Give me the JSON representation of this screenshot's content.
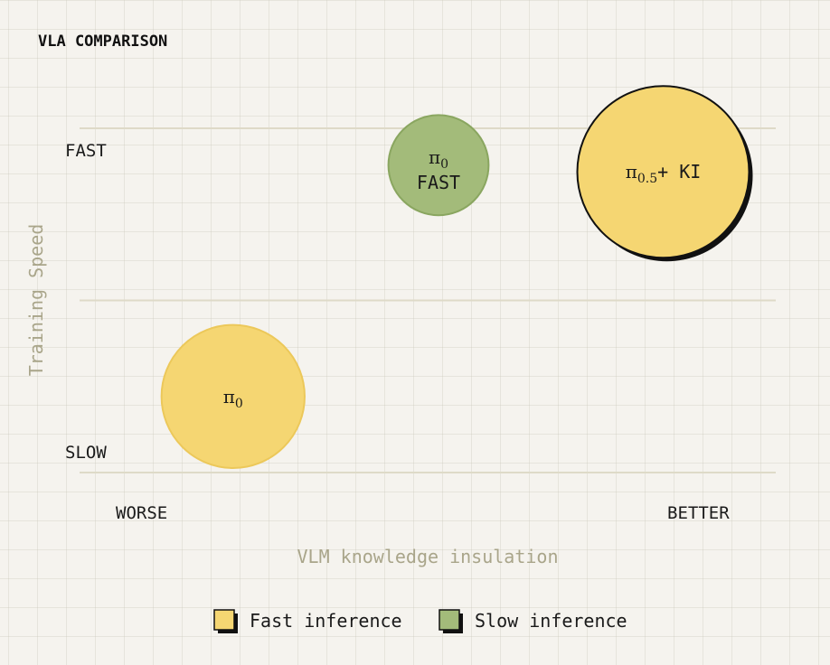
{
  "chart_data": {
    "type": "scatter",
    "title": "VLA COMPARISON",
    "xlabel": "VLM knowledge insulation",
    "ylabel": "Training Speed",
    "x_ticks": [
      "WORSE",
      "BETTER"
    ],
    "y_ticks": [
      "FAST",
      "SLOW"
    ],
    "xlim": [
      0,
      1
    ],
    "ylim": [
      0,
      1
    ],
    "grid": true,
    "legend_placement": "bottom",
    "colors": {
      "fast": "#f5d672",
      "fast_stroke": "#ecc85a",
      "slow": "#a3bb7a",
      "slow_stroke": "#8aa660",
      "ink": "#111111",
      "gridline": "#dedac8"
    },
    "legend": [
      {
        "label": "Fast inference",
        "color": "#f5d672"
      },
      {
        "label": "Slow inference",
        "color": "#a3bb7a"
      }
    ],
    "points": [
      {
        "label_sym": "π",
        "label_sub": "0",
        "label_rest": "",
        "x": 0.18,
        "y": 0.2,
        "size": 1.0,
        "inference": "fast",
        "highlight": false
      },
      {
        "label_sym": "π",
        "label_sub": "0",
        "label_rest": "FAST",
        "x": 0.5,
        "y": 0.89,
        "size": 0.7,
        "inference": "slow",
        "highlight": false
      },
      {
        "label_sym": "π",
        "label_sub": "0.5",
        "label_rest": "+ KI",
        "x": 0.85,
        "y": 0.87,
        "size": 1.2,
        "inference": "fast",
        "highlight": true
      }
    ]
  }
}
